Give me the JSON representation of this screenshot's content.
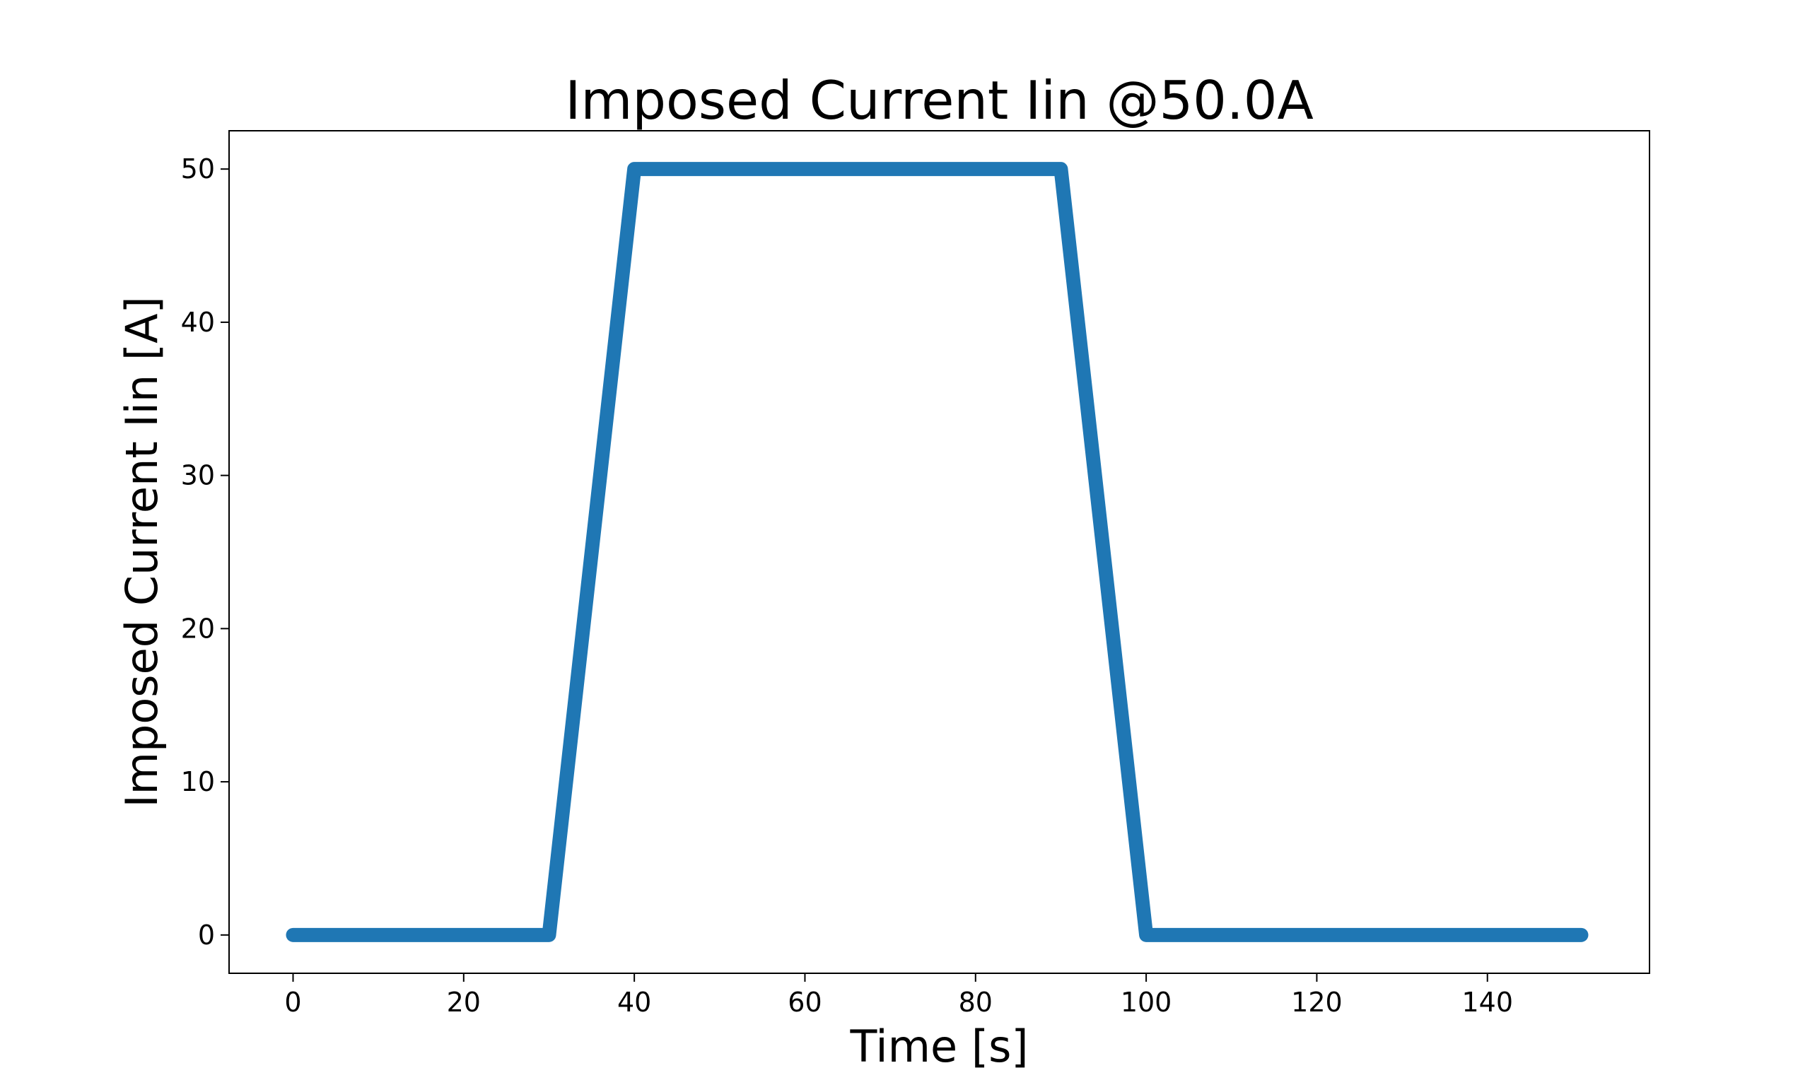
{
  "chart_data": {
    "type": "line",
    "title": "Imposed Current Iin @50.0A",
    "xlabel": "Time [s]",
    "ylabel": "Imposed Current Iin [A]",
    "xlim": [
      -7.5,
      159
    ],
    "ylim": [
      -2.5,
      52.5
    ],
    "xticks": [
      0,
      20,
      40,
      60,
      80,
      100,
      120,
      140
    ],
    "yticks": [
      0,
      10,
      20,
      30,
      40,
      50
    ],
    "grid": false,
    "legend": "none",
    "series": [
      {
        "color": "#1f77b4",
        "x": [
          0,
          30,
          40,
          90,
          100,
          151
        ],
        "y": [
          0,
          0,
          50,
          50,
          0,
          0
        ]
      }
    ]
  }
}
